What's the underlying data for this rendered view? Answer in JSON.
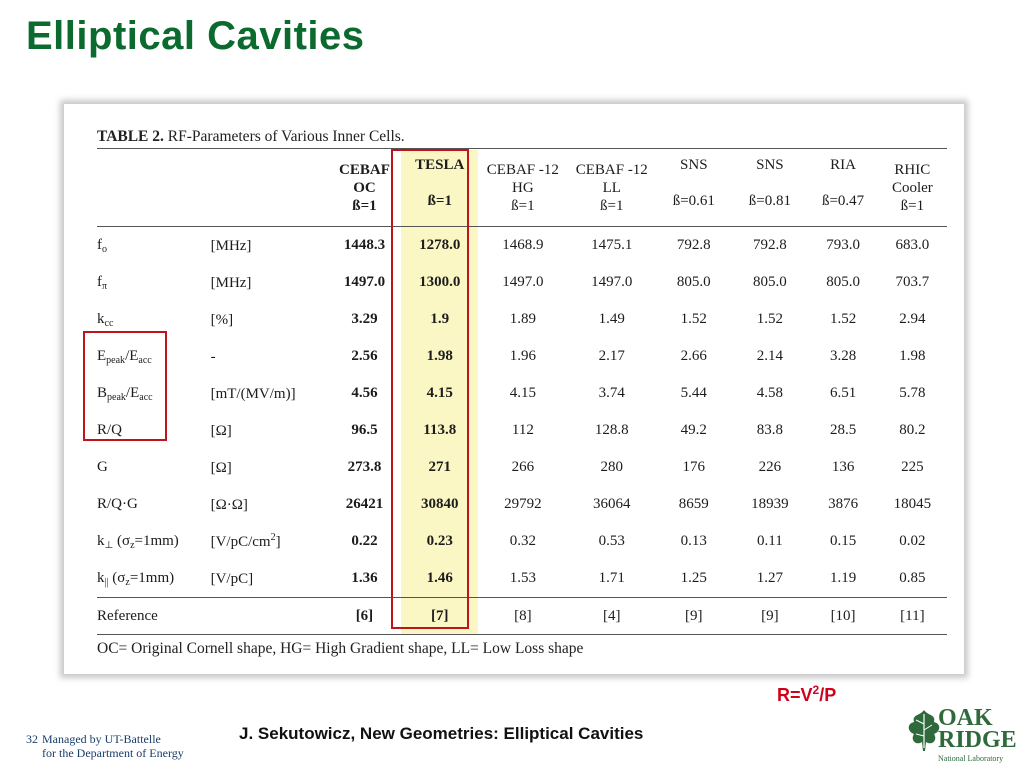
{
  "slide": {
    "title": "Elliptical Cavities",
    "formula_base": "R=V",
    "formula_power": "2",
    "formula_rest": "/P",
    "citation": "J. Sekutowicz, New Geometries: Elliptical Cavities",
    "page_number": "32",
    "footer_line1": "Managed by UT-Battelle",
    "footer_line2": "for the Department of Energy",
    "logo_word1": "OAK",
    "logo_word2": "RIDGE",
    "logo_small": "National Laboratory"
  },
  "table": {
    "caption_bold": "TABLE 2.",
    "caption_text": " RF-Parameters of Various Inner Cells.",
    "columns": [
      {
        "l1": "CEBAF",
        "l2": "OC",
        "l3": "ß=1"
      },
      {
        "l1": "TESLA",
        "l2": "",
        "l3": "ß=1"
      },
      {
        "l1": "CEBAF -12",
        "l2": "HG",
        "l3": "ß=1"
      },
      {
        "l1": "CEBAF -12",
        "l2": "LL",
        "l3": "ß=1"
      },
      {
        "l1": "SNS",
        "l2": "",
        "l3": "ß=0.61"
      },
      {
        "l1": "SNS",
        "l2": "",
        "l3": "ß=0.81"
      },
      {
        "l1": "RIA",
        "l2": "",
        "l3": "ß=0.47"
      },
      {
        "l1": "RHIC",
        "l2": "Cooler",
        "l3": "ß=1"
      }
    ],
    "rows": [
      {
        "p_main": "f",
        "p_sub": "o",
        "p_rest": "",
        "p_sub2": "",
        "unit": "[MHz]",
        "unit_sup": "",
        "unit_end": "",
        "v": [
          "1448.3",
          "1278.0",
          "1468.9",
          "1475.1",
          "792.8",
          "792.8",
          "793.0",
          "683.0"
        ]
      },
      {
        "p_main": "f",
        "p_sub": "π",
        "p_rest": "",
        "p_sub2": "",
        "unit": "[MHz]",
        "unit_sup": "",
        "unit_end": "",
        "v": [
          "1497.0",
          "1300.0",
          "1497.0",
          "1497.0",
          "805.0",
          "805.0",
          "805.0",
          "703.7"
        ]
      },
      {
        "p_main": "k",
        "p_sub": "cc",
        "p_rest": "",
        "p_sub2": "",
        "unit": "[%]",
        "unit_sup": "",
        "unit_end": "",
        "v": [
          "3.29",
          "1.9",
          "1.89",
          "1.49",
          "1.52",
          "1.52",
          "1.52",
          "2.94"
        ]
      },
      {
        "p_main": "E",
        "p_sub": "peak",
        "p_rest": "/E",
        "p_sub2": "acc",
        "unit": "-",
        "unit_sup": "",
        "unit_end": "",
        "v": [
          "2.56",
          "1.98",
          "1.96",
          "2.17",
          "2.66",
          "2.14",
          "3.28",
          "1.98"
        ]
      },
      {
        "p_main": "B",
        "p_sub": "peak",
        "p_rest": "/E",
        "p_sub2": "acc",
        "unit": "[mT/(MV/m)]",
        "unit_sup": "",
        "unit_end": "",
        "v": [
          "4.56",
          "4.15",
          "4.15",
          "3.74",
          "5.44",
          "4.58",
          "6.51",
          "5.78"
        ]
      },
      {
        "p_main": "R/Q",
        "p_sub": "",
        "p_rest": "",
        "p_sub2": "",
        "unit": "[Ω]",
        "unit_sup": "",
        "unit_end": "",
        "v": [
          "96.5",
          "113.8",
          "112",
          "128.8",
          "49.2",
          "83.8",
          "28.5",
          "80.2"
        ]
      },
      {
        "p_main": "G",
        "p_sub": "",
        "p_rest": "",
        "p_sub2": "",
        "unit": "[Ω]",
        "unit_sup": "",
        "unit_end": "",
        "v": [
          "273.8",
          "271",
          "266",
          "280",
          "176",
          "226",
          "136",
          "225"
        ]
      },
      {
        "p_main": "R/Q·G",
        "p_sub": "",
        "p_rest": "",
        "p_sub2": "",
        "unit": "[Ω·Ω]",
        "unit_sup": "",
        "unit_end": "",
        "v": [
          "26421",
          "30840",
          "29792",
          "36064",
          "8659",
          "18939",
          "3876",
          "18045"
        ]
      },
      {
        "p_main": "k",
        "p_sub": "⊥",
        "p_rest": "  (σ",
        "p_sub2": "z",
        "p_end": "=1mm)",
        "unit": "[V/pC/cm",
        "unit_sup": "2",
        "unit_end": "]",
        "v": [
          "0.22",
          "0.23",
          "0.32",
          "0.53",
          "0.13",
          "0.11",
          "0.15",
          "0.02"
        ]
      },
      {
        "p_main": "k",
        "p_sub": "||",
        "p_rest": " (σ",
        "p_sub2": "z",
        "p_end": "=1mm)",
        "unit": "[V/pC]",
        "unit_sup": "",
        "unit_end": "",
        "v": [
          "1.36",
          "1.46",
          "1.53",
          "1.71",
          "1.25",
          "1.27",
          "1.19",
          "0.85"
        ]
      }
    ],
    "reference": {
      "label": "Reference",
      "v": [
        "[6]",
        "[7]",
        "[8]",
        "[4]",
        "[9]",
        "[9]",
        "[10]",
        "[11]"
      ]
    },
    "note": "OC= Original Cornell shape, HG= High Gradient shape, LL= Low Loss shape"
  }
}
